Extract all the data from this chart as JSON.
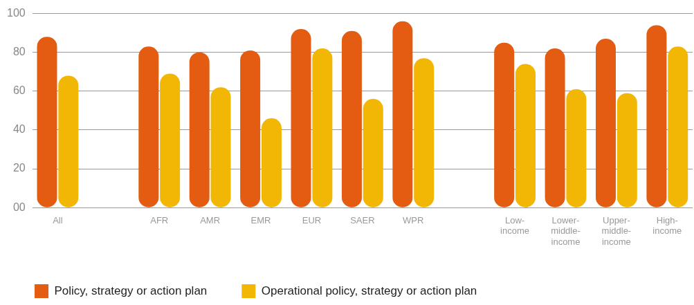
{
  "chart_data": {
    "type": "bar",
    "categories": [
      "All",
      null,
      "AFR",
      "AMR",
      "EMR",
      "EUR",
      "SAER",
      "WPR",
      null,
      "Low-income",
      "Lower-middle-income",
      "Upper-middle-income",
      "High-income"
    ],
    "series": [
      {
        "name": "Policy, strategy or action plan",
        "color": "#e35c12",
        "values": [
          88,
          null,
          83,
          80,
          81,
          92,
          91,
          96,
          null,
          85,
          82,
          87,
          94
        ]
      },
      {
        "name": "Operational policy, strategy or action plan",
        "color": "#f2b705",
        "values": [
          68,
          null,
          69,
          62,
          46,
          82,
          56,
          77,
          null,
          74,
          61,
          59,
          83
        ]
      }
    ],
    "ylim": [
      0,
      100
    ],
    "yticks": [
      {
        "value": 0,
        "label": "00"
      },
      20,
      40,
      60,
      80,
      100
    ],
    "grid": "y",
    "legend": "bottom left"
  }
}
